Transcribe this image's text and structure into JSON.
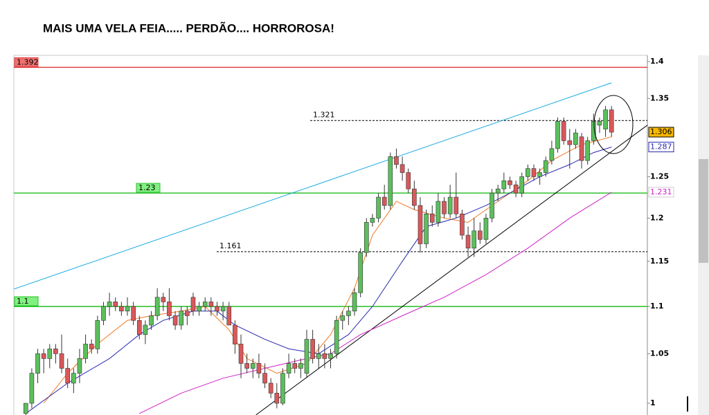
{
  "chart_data": {
    "type": "candlestick",
    "title": "MAIS UMA VELA FEIA..... PERDÃO.... HORROROSA!",
    "log": true,
    "up_color": "#5cbf5c",
    "down_color": "#d9585a",
    "xlim": [
      -2,
      104
    ],
    "ylim": [
      0.9885,
      1.4086
    ],
    "yticks": [
      1.4,
      1.35,
      1.25,
      1.2,
      1.15,
      1.1,
      1.05,
      1
    ],
    "open": [
      0.99,
      1.0,
      1.03,
      1.05,
      1.045,
      1.055,
      1.05,
      1.035,
      1.02,
      1.03,
      1.045,
      1.06,
      1.055,
      1.085,
      1.1,
      1.105,
      1.1,
      1.095,
      1.1,
      1.085,
      1.07,
      1.08,
      1.09,
      1.11,
      1.105,
      1.09,
      1.08,
      1.095,
      1.11,
      1.095,
      1.1,
      1.105,
      1.1,
      1.095,
      1.1,
      1.08,
      1.06,
      1.04,
      1.035,
      1.04,
      1.03,
      1.02,
      1.01,
      1.0,
      1.03,
      1.04,
      1.035,
      1.03,
      1.065,
      1.045,
      1.05,
      1.045,
      1.05,
      1.085,
      1.09,
      1.095,
      1.115,
      1.16,
      1.195,
      1.2,
      1.225,
      1.215,
      1.275,
      1.265,
      1.255,
      1.235,
      1.215,
      1.17,
      1.205,
      1.195,
      1.22,
      1.205,
      1.225,
      1.205,
      1.18,
      1.165,
      1.185,
      1.175,
      1.2,
      1.23,
      1.235,
      1.245,
      1.24,
      1.23,
      1.25,
      1.26,
      1.25,
      1.255,
      1.27,
      1.285,
      1.32,
      1.295,
      1.29,
      1.3,
      1.27,
      1.295,
      1.315,
      1.31,
      1.335
    ],
    "high": [
      1.0,
      1.035,
      1.055,
      1.055,
      1.06,
      1.06,
      1.07,
      1.045,
      1.035,
      1.055,
      1.07,
      1.065,
      1.09,
      1.105,
      1.115,
      1.11,
      1.105,
      1.11,
      1.105,
      1.09,
      1.085,
      1.095,
      1.12,
      1.115,
      1.12,
      1.095,
      1.1,
      1.1,
      1.115,
      1.105,
      1.11,
      1.11,
      1.105,
      1.105,
      1.105,
      1.085,
      1.07,
      1.05,
      1.045,
      1.05,
      1.04,
      1.025,
      1.02,
      1.035,
      1.05,
      1.045,
      1.045,
      1.075,
      1.075,
      1.06,
      1.06,
      1.055,
      1.09,
      1.095,
      1.1,
      1.12,
      1.165,
      1.2,
      1.205,
      1.23,
      1.24,
      1.28,
      1.285,
      1.275,
      1.26,
      1.245,
      1.225,
      1.21,
      1.215,
      1.23,
      1.225,
      1.24,
      1.255,
      1.21,
      1.19,
      1.2,
      1.195,
      1.205,
      1.235,
      1.24,
      1.255,
      1.25,
      1.245,
      1.255,
      1.265,
      1.265,
      1.26,
      1.275,
      1.295,
      1.325,
      1.325,
      1.31,
      1.31,
      1.305,
      1.3,
      1.33,
      1.325,
      1.34,
      1.34
    ],
    "low": [
      0.985,
      0.995,
      1.02,
      1.03,
      1.035,
      1.04,
      1.03,
      1.015,
      1.01,
      1.02,
      1.04,
      1.05,
      1.05,
      1.08,
      1.09,
      1.095,
      1.09,
      1.09,
      1.08,
      1.065,
      1.06,
      1.075,
      1.085,
      1.095,
      1.085,
      1.075,
      1.075,
      1.08,
      1.09,
      1.09,
      1.095,
      1.09,
      1.09,
      1.085,
      1.08,
      1.05,
      1.025,
      1.03,
      1.025,
      1.025,
      1.015,
      1.005,
      0.995,
      0.998,
      1.025,
      1.03,
      1.025,
      1.025,
      1.04,
      1.035,
      1.035,
      1.035,
      1.045,
      1.075,
      1.08,
      1.09,
      1.11,
      1.155,
      1.19,
      1.195,
      1.21,
      1.21,
      1.26,
      1.245,
      1.23,
      1.21,
      1.16,
      1.165,
      1.19,
      1.19,
      1.2,
      1.2,
      1.2,
      1.175,
      1.155,
      1.155,
      1.17,
      1.17,
      1.195,
      1.22,
      1.23,
      1.235,
      1.225,
      1.225,
      1.245,
      1.245,
      1.24,
      1.25,
      1.265,
      1.28,
      1.29,
      1.26,
      1.285,
      1.26,
      1.265,
      1.29,
      1.305,
      1.3,
      1.3
    ],
    "close": [
      1.0,
      1.03,
      1.05,
      1.045,
      1.055,
      1.05,
      1.035,
      1.02,
      1.03,
      1.045,
      1.06,
      1.055,
      1.085,
      1.1,
      1.105,
      1.1,
      1.095,
      1.1,
      1.085,
      1.07,
      1.08,
      1.09,
      1.11,
      1.105,
      1.09,
      1.08,
      1.095,
      1.09,
      1.095,
      1.1,
      1.105,
      1.1,
      1.095,
      1.1,
      1.08,
      1.06,
      1.04,
      1.035,
      1.04,
      1.03,
      1.02,
      1.01,
      1.0,
      1.03,
      1.04,
      1.035,
      1.04,
      1.065,
      1.045,
      1.05,
      1.045,
      1.05,
      1.085,
      1.09,
      1.095,
      1.115,
      1.16,
      1.195,
      1.2,
      1.225,
      1.215,
      1.275,
      1.265,
      1.255,
      1.235,
      1.215,
      1.17,
      1.205,
      1.195,
      1.22,
      1.205,
      1.225,
      1.205,
      1.18,
      1.165,
      1.185,
      1.175,
      1.2,
      1.23,
      1.235,
      1.245,
      1.24,
      1.23,
      1.25,
      1.26,
      1.25,
      1.255,
      1.27,
      1.285,
      1.32,
      1.295,
      1.29,
      1.305,
      1.27,
      1.295,
      1.32,
      1.32,
      1.335,
      1.306
    ],
    "moving_averages": [
      {
        "color": "#f07820",
        "x": [
          3,
          7,
          12,
          17,
          21,
          26,
          30,
          34,
          37,
          42,
          47,
          51,
          55,
          58,
          62,
          65,
          70,
          74,
          79,
          84,
          88,
          93,
          98
        ],
        "values": [
          1.0,
          1.03,
          1.06,
          1.085,
          1.09,
          1.095,
          1.1,
          1.075,
          1.045,
          1.03,
          1.04,
          1.07,
          1.12,
          1.18,
          1.22,
          1.21,
          1.2,
          1.195,
          1.22,
          1.245,
          1.27,
          1.29,
          1.3
        ]
      },
      {
        "color": "#2828b0",
        "x": [
          0,
          7,
          14,
          19,
          23,
          28,
          32,
          35,
          40,
          44,
          49,
          54,
          58,
          63,
          67,
          72,
          77,
          81,
          86,
          91,
          95,
          98
        ],
        "values": [
          0.99,
          1.02,
          1.045,
          1.07,
          1.085,
          1.095,
          1.095,
          1.08,
          1.065,
          1.055,
          1.05,
          1.07,
          1.1,
          1.15,
          1.19,
          1.2,
          1.215,
          1.23,
          1.25,
          1.265,
          1.28,
          1.287
        ]
      },
      {
        "color": "#d020c8",
        "x": [
          19,
          26,
          33,
          40,
          47,
          51,
          56,
          63,
          70,
          77,
          84,
          91,
          98
        ],
        "values": [
          0.99,
          1.01,
          1.025,
          1.035,
          1.045,
          1.05,
          1.07,
          1.09,
          1.11,
          1.135,
          1.165,
          1.2,
          1.231
        ]
      }
    ],
    "trendlines": [
      {
        "color": "#10a8e0",
        "x": [
          -2,
          98
        ],
        "y": [
          1.119,
          1.371
        ]
      },
      {
        "color": "#000000",
        "x": [
          38.5,
          104
        ],
        "y": [
          0.9885,
          1.315
        ]
      }
    ],
    "levels": [
      {
        "value": 1.392,
        "color": "#e04040",
        "fill": "#f07070",
        "dashed": false
      },
      {
        "value": 1.23,
        "color": "#30c030",
        "fill": "#80f080",
        "dashed": false
      },
      {
        "value": 1.1,
        "color": "#20c020",
        "fill": "#80f080",
        "dashed": false
      },
      {
        "value": 1.321,
        "color": "#000000",
        "fill": null,
        "dashed": true
      },
      {
        "value": 1.161,
        "color": "#000000",
        "fill": null,
        "dashed": true
      }
    ],
    "price_tags": [
      {
        "value": 1.306,
        "color": "#000000",
        "fill": "#f8b800",
        "border": "#000000"
      },
      {
        "value": 1.287,
        "color": "#2828b0",
        "fill": "#ffffff",
        "border": "#2828b0"
      },
      {
        "value": 1.231,
        "color": "#d020c8",
        "fill": "#ffffff",
        "border": "#cccccc"
      }
    ]
  }
}
